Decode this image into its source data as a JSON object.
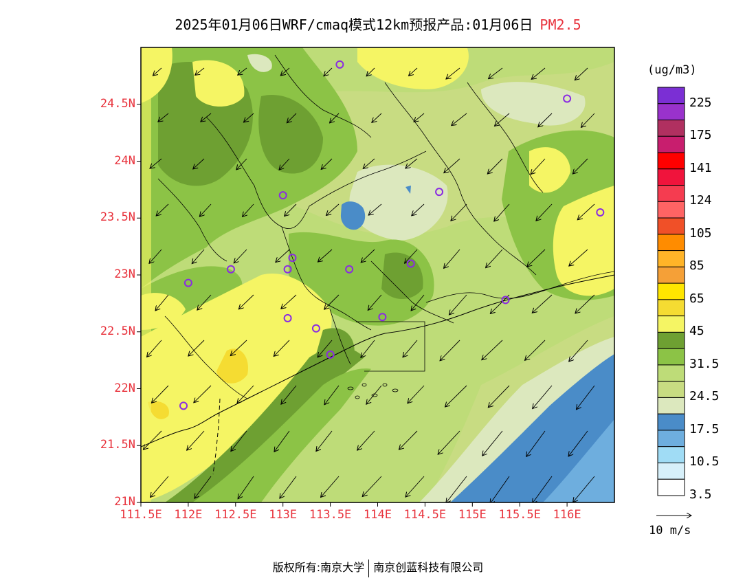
{
  "title": {
    "main": "2025年01月06日WRF/cmaq模式12km预报产品:01月06日",
    "pollutant": "PM2.5"
  },
  "axes": {
    "lat_labels": [
      "24.5N",
      "24N",
      "23.5N",
      "23N",
      "22.5N",
      "22N",
      "21.5N",
      "21N"
    ],
    "lat_values": [
      24.5,
      24,
      23.5,
      23,
      22.5,
      22,
      21.5,
      21
    ],
    "lon_labels": [
      "111.5E",
      "112E",
      "112.5E",
      "113E",
      "113.5E",
      "114E",
      "114.5E",
      "115E",
      "115.5E",
      "116E"
    ],
    "lon_values": [
      111.5,
      112,
      112.5,
      113,
      113.5,
      114,
      114.5,
      115,
      115.5,
      116
    ],
    "lon_range": [
      111.5,
      116.5
    ],
    "lat_range": [
      21,
      25
    ]
  },
  "colorbar": {
    "unit": "(ug/m3)",
    "labels": [
      "225",
      "175",
      "141",
      "124",
      "105",
      "85",
      "65",
      "45",
      "31.5",
      "24.5",
      "17.5",
      "10.5",
      "3.5"
    ],
    "colors_top_to_bottom": [
      "#7b2fd4",
      "#9932cc",
      "#b03060",
      "#c81e6e",
      "#ff0000",
      "#f0143c",
      "#f53c50",
      "#ff6464",
      "#f05028",
      "#ff8c00",
      "#ffb428",
      "#f5a037",
      "#ffe600",
      "#f5dc32",
      "#f5f564",
      "#6ea032",
      "#8cc346",
      "#bedc78",
      "#c8dc82",
      "#dce8be",
      "#4a8cc8",
      "#6eaede",
      "#a0dcf5",
      "#d7f0fa",
      "#ffffff"
    ]
  },
  "wind": {
    "reference_label": "10 m/s"
  },
  "stations": [
    {
      "lon": 113.6,
      "lat": 24.85
    },
    {
      "lon": 116.0,
      "lat": 24.55
    },
    {
      "lon": 114.65,
      "lat": 23.73
    },
    {
      "lon": 113.0,
      "lat": 23.7
    },
    {
      "lon": 116.35,
      "lat": 23.55
    },
    {
      "lon": 112.45,
      "lat": 23.05
    },
    {
      "lon": 113.1,
      "lat": 23.15
    },
    {
      "lon": 113.05,
      "lat": 23.05
    },
    {
      "lon": 113.7,
      "lat": 23.05
    },
    {
      "lon": 114.35,
      "lat": 23.1
    },
    {
      "lon": 112.0,
      "lat": 22.93
    },
    {
      "lon": 115.35,
      "lat": 22.78
    },
    {
      "lon": 113.05,
      "lat": 22.62
    },
    {
      "lon": 114.05,
      "lat": 22.63
    },
    {
      "lon": 113.35,
      "lat": 22.53
    },
    {
      "lon": 113.5,
      "lat": 22.3
    },
    {
      "lon": 111.95,
      "lat": 21.85
    }
  ],
  "footer": {
    "left": "版权所有:南京大学",
    "right": "南京创蓝科技有限公司"
  }
}
